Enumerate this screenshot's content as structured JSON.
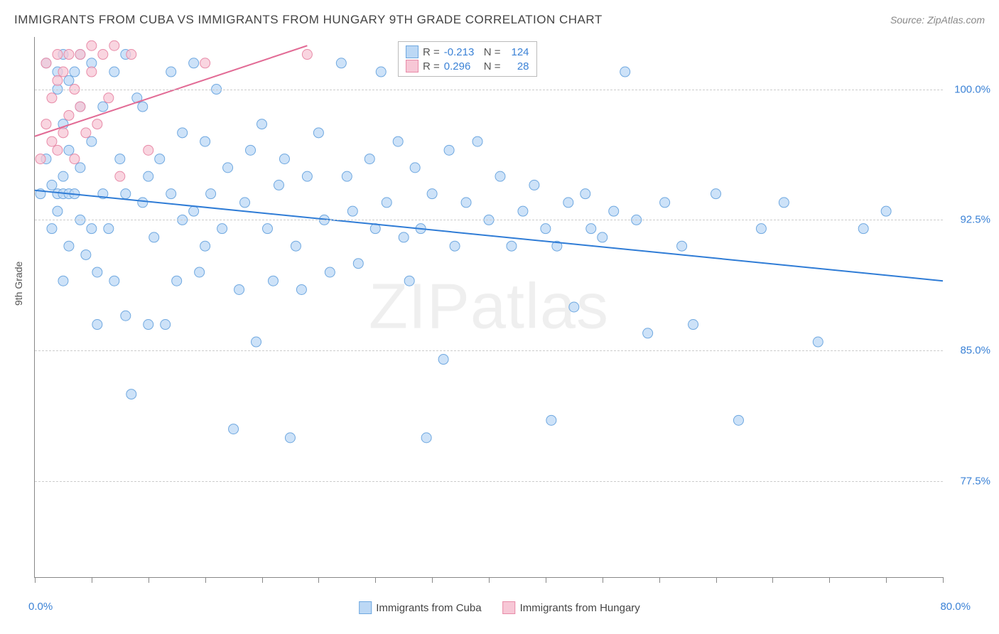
{
  "title": "IMMIGRANTS FROM CUBA VS IMMIGRANTS FROM HUNGARY 9TH GRADE CORRELATION CHART",
  "source": "Source: ZipAtlas.com",
  "ylabel": "9th Grade",
  "watermark_a": "ZIP",
  "watermark_b": "atlas",
  "chart": {
    "type": "scatter",
    "xlim": [
      0,
      80
    ],
    "ylim": [
      72,
      103
    ],
    "x_min_label": "0.0%",
    "x_max_label": "80.0%",
    "y_ticks": [
      77.5,
      85.0,
      92.5,
      100.0
    ],
    "y_tick_labels": [
      "77.5%",
      "85.0%",
      "92.5%",
      "100.0%"
    ],
    "x_tick_positions": [
      0,
      5,
      10,
      15,
      20,
      25,
      30,
      35,
      40,
      45,
      50,
      55,
      60,
      65,
      70,
      75,
      80
    ],
    "grid_color": "#cccccc",
    "axis_color": "#888888",
    "background": "#ffffff",
    "series": [
      {
        "name": "Immigrants from Cuba",
        "color_fill": "#bcd8f5",
        "color_stroke": "#6fa8e0",
        "marker_radius": 7,
        "R": "-0.213",
        "N": "124",
        "trend": {
          "x1": 0,
          "y1": 94.2,
          "x2": 80,
          "y2": 89.0,
          "color": "#2f7cd6",
          "width": 2
        },
        "points": [
          [
            0.5,
            94.0
          ],
          [
            1.0,
            101.5
          ],
          [
            1.0,
            96.0
          ],
          [
            1.5,
            94.5
          ],
          [
            1.5,
            92.0
          ],
          [
            2.0,
            101.0
          ],
          [
            2.0,
            100.0
          ],
          [
            2.0,
            94.0
          ],
          [
            2.0,
            93.0
          ],
          [
            2.5,
            102.0
          ],
          [
            2.5,
            98.0
          ],
          [
            2.5,
            95.0
          ],
          [
            2.5,
            94.0
          ],
          [
            2.5,
            89.0
          ],
          [
            3.0,
            100.5
          ],
          [
            3.0,
            96.5
          ],
          [
            3.0,
            94.0
          ],
          [
            3.0,
            91.0
          ],
          [
            3.5,
            101.0
          ],
          [
            3.5,
            94.0
          ],
          [
            4.0,
            102.0
          ],
          [
            4.0,
            99.0
          ],
          [
            4.0,
            95.5
          ],
          [
            4.0,
            92.5
          ],
          [
            4.5,
            90.5
          ],
          [
            5.0,
            101.5
          ],
          [
            5.0,
            97.0
          ],
          [
            5.0,
            92.0
          ],
          [
            5.5,
            89.5
          ],
          [
            5.5,
            86.5
          ],
          [
            6.0,
            99.0
          ],
          [
            6.0,
            94.0
          ],
          [
            6.5,
            92.0
          ],
          [
            7.0,
            101.0
          ],
          [
            7.0,
            89.0
          ],
          [
            7.5,
            96.0
          ],
          [
            8.0,
            102.0
          ],
          [
            8.0,
            94.0
          ],
          [
            8.0,
            87.0
          ],
          [
            8.5,
            82.5
          ],
          [
            9.0,
            99.5
          ],
          [
            9.5,
            99.0
          ],
          [
            9.5,
            93.5
          ],
          [
            10.0,
            95.0
          ],
          [
            10.0,
            86.5
          ],
          [
            10.5,
            91.5
          ],
          [
            11.0,
            96.0
          ],
          [
            11.5,
            86.5
          ],
          [
            12.0,
            101.0
          ],
          [
            12.0,
            94.0
          ],
          [
            12.5,
            89.0
          ],
          [
            13.0,
            97.5
          ],
          [
            13.0,
            92.5
          ],
          [
            14.0,
            101.5
          ],
          [
            14.0,
            93.0
          ],
          [
            14.5,
            89.5
          ],
          [
            15.0,
            97.0
          ],
          [
            15.0,
            91.0
          ],
          [
            15.5,
            94.0
          ],
          [
            16.0,
            100.0
          ],
          [
            16.5,
            92.0
          ],
          [
            17.0,
            95.5
          ],
          [
            17.5,
            80.5
          ],
          [
            18.0,
            88.5
          ],
          [
            18.5,
            93.5
          ],
          [
            19.0,
            96.5
          ],
          [
            19.5,
            85.5
          ],
          [
            20.0,
            98.0
          ],
          [
            20.5,
            92.0
          ],
          [
            21.0,
            89.0
          ],
          [
            21.5,
            94.5
          ],
          [
            22.0,
            96.0
          ],
          [
            22.5,
            80.0
          ],
          [
            23.0,
            91.0
          ],
          [
            23.5,
            88.5
          ],
          [
            24.0,
            95.0
          ],
          [
            25.0,
            97.5
          ],
          [
            25.5,
            92.5
          ],
          [
            26.0,
            89.5
          ],
          [
            27.0,
            101.5
          ],
          [
            27.5,
            95.0
          ],
          [
            28.0,
            93.0
          ],
          [
            28.5,
            90.0
          ],
          [
            29.5,
            96.0
          ],
          [
            30.0,
            92.0
          ],
          [
            30.5,
            101.0
          ],
          [
            31.0,
            93.5
          ],
          [
            32.0,
            97.0
          ],
          [
            32.5,
            91.5
          ],
          [
            33.0,
            89.0
          ],
          [
            33.5,
            95.5
          ],
          [
            34.0,
            92.0
          ],
          [
            34.5,
            80.0
          ],
          [
            35.0,
            94.0
          ],
          [
            36.0,
            84.5
          ],
          [
            36.5,
            96.5
          ],
          [
            37.0,
            91.0
          ],
          [
            38.0,
            93.5
          ],
          [
            39.0,
            97.0
          ],
          [
            40.0,
            92.5
          ],
          [
            41.0,
            95.0
          ],
          [
            42.0,
            91.0
          ],
          [
            43.0,
            93.0
          ],
          [
            44.0,
            94.5
          ],
          [
            45.0,
            92.0
          ],
          [
            45.5,
            81.0
          ],
          [
            46.0,
            91.0
          ],
          [
            47.0,
            93.5
          ],
          [
            47.5,
            87.5
          ],
          [
            48.5,
            94.0
          ],
          [
            49.0,
            92.0
          ],
          [
            50.0,
            91.5
          ],
          [
            51.0,
            93.0
          ],
          [
            52.0,
            101.0
          ],
          [
            53.0,
            92.5
          ],
          [
            54.0,
            86.0
          ],
          [
            55.5,
            93.5
          ],
          [
            57.0,
            91.0
          ],
          [
            58.0,
            86.5
          ],
          [
            60.0,
            94.0
          ],
          [
            62.0,
            81.0
          ],
          [
            64.0,
            92.0
          ],
          [
            66.0,
            93.5
          ],
          [
            69.0,
            85.5
          ],
          [
            73.0,
            92.0
          ],
          [
            75.0,
            93.0
          ]
        ]
      },
      {
        "name": "Immigrants from Hungary",
        "color_fill": "#f7c7d6",
        "color_stroke": "#e88ba8",
        "marker_radius": 7,
        "R": "0.296",
        "N": "28",
        "trend": {
          "x1": 0,
          "y1": 97.3,
          "x2": 24,
          "y2": 102.5,
          "color": "#e26b95",
          "width": 2
        },
        "points": [
          [
            0.5,
            96.0
          ],
          [
            1.0,
            98.0
          ],
          [
            1.0,
            101.5
          ],
          [
            1.5,
            97.0
          ],
          [
            1.5,
            99.5
          ],
          [
            2.0,
            96.5
          ],
          [
            2.0,
            100.5
          ],
          [
            2.0,
            102.0
          ],
          [
            2.5,
            97.5
          ],
          [
            2.5,
            101.0
          ],
          [
            3.0,
            98.5
          ],
          [
            3.0,
            102.0
          ],
          [
            3.5,
            96.0
          ],
          [
            3.5,
            100.0
          ],
          [
            4.0,
            99.0
          ],
          [
            4.0,
            102.0
          ],
          [
            4.5,
            97.5
          ],
          [
            5.0,
            101.0
          ],
          [
            5.0,
            102.5
          ],
          [
            5.5,
            98.0
          ],
          [
            6.0,
            102.0
          ],
          [
            6.5,
            99.5
          ],
          [
            7.0,
            102.5
          ],
          [
            7.5,
            95.0
          ],
          [
            8.5,
            102.0
          ],
          [
            10.0,
            96.5
          ],
          [
            15.0,
            101.5
          ],
          [
            24.0,
            102.0
          ]
        ]
      }
    ]
  },
  "legend_stats": {
    "r_label": "R =",
    "n_label": "N ="
  },
  "bottom_legend": {
    "items": [
      "Immigrants from Cuba",
      "Immigrants from Hungary"
    ]
  }
}
